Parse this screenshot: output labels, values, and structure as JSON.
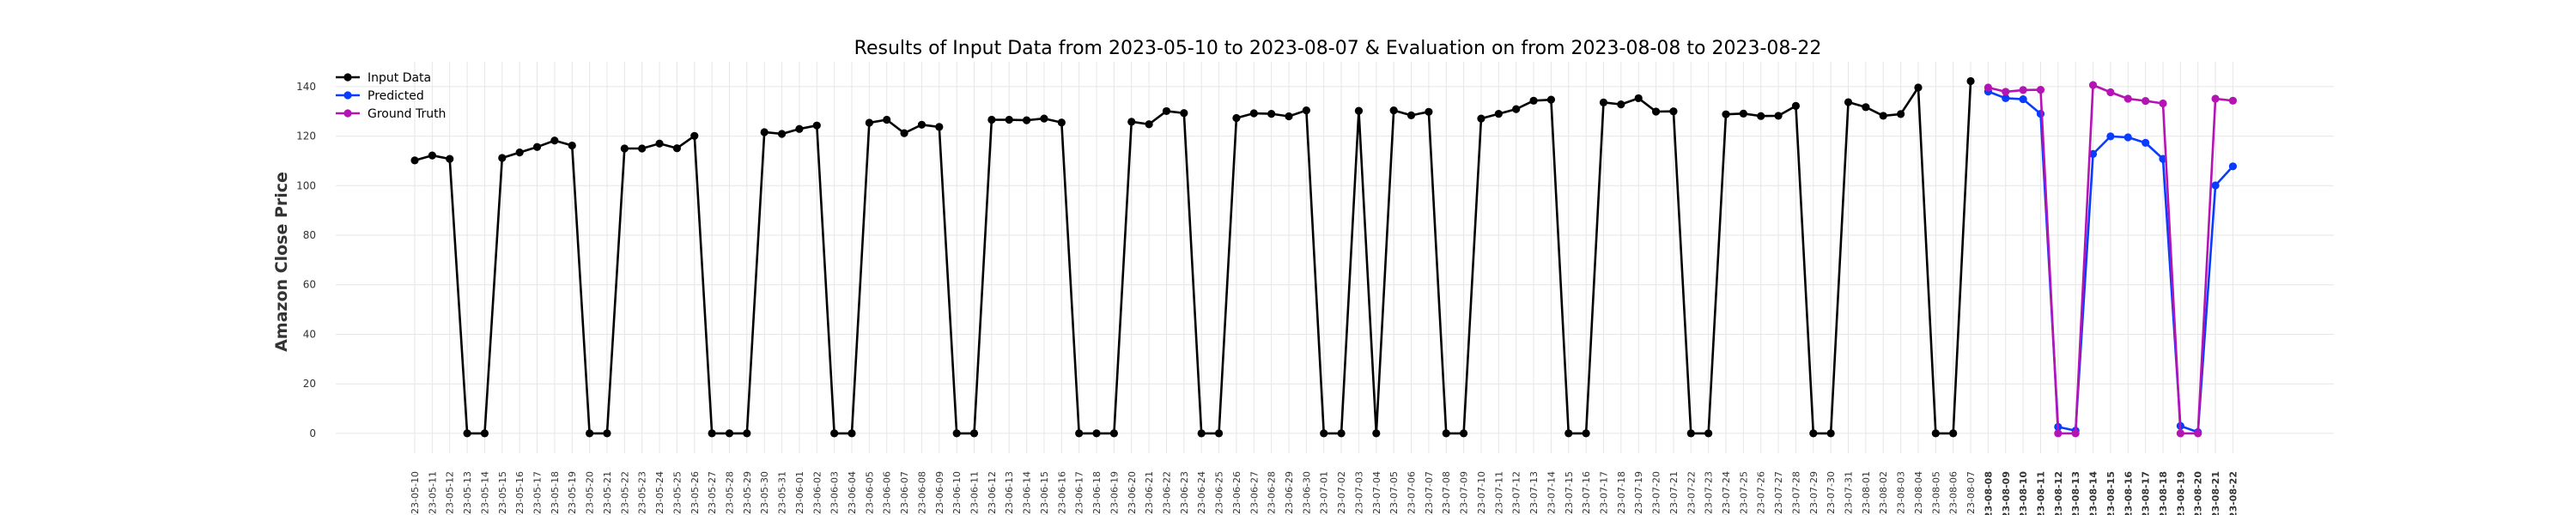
{
  "chart_data": {
    "type": "line",
    "title": "Results of Input Data from 2023-05-10 to 2023-08-07 & Evaluation on from 2023-08-08 to 2023-08-22",
    "ylabel": "Amazon Close Price",
    "xlabel": "",
    "ylim": [
      -8,
      150
    ],
    "yticks": [
      0,
      20,
      40,
      60,
      80,
      100,
      120,
      140
    ],
    "grid": true,
    "legend_position": "top-left",
    "series": [
      {
        "name": "Input Data",
        "color": "#000000",
        "x": [
          "2023-05-10",
          "2023-05-11",
          "2023-05-12",
          "2023-05-13",
          "2023-05-14",
          "2023-05-15",
          "2023-05-16",
          "2023-05-17",
          "2023-05-18",
          "2023-05-19",
          "2023-05-20",
          "2023-05-21",
          "2023-05-22",
          "2023-05-23",
          "2023-05-24",
          "2023-05-25",
          "2023-05-26",
          "2023-05-27",
          "2023-05-28",
          "2023-05-29",
          "2023-05-30",
          "2023-05-31",
          "2023-06-01",
          "2023-06-02",
          "2023-06-03",
          "2023-06-04",
          "2023-06-05",
          "2023-06-06",
          "2023-06-07",
          "2023-06-08",
          "2023-06-09",
          "2023-06-10",
          "2023-06-11",
          "2023-06-12",
          "2023-06-13",
          "2023-06-14",
          "2023-06-15",
          "2023-06-16",
          "2023-06-17",
          "2023-06-18",
          "2023-06-19",
          "2023-06-20",
          "2023-06-21",
          "2023-06-22",
          "2023-06-23",
          "2023-06-24",
          "2023-06-25",
          "2023-06-26",
          "2023-06-27",
          "2023-06-28",
          "2023-06-29",
          "2023-06-30",
          "2023-07-01",
          "2023-07-02",
          "2023-07-03",
          "2023-07-04",
          "2023-07-05",
          "2023-07-06",
          "2023-07-07",
          "2023-07-08",
          "2023-07-09",
          "2023-07-10",
          "2023-07-11",
          "2023-07-12",
          "2023-07-13",
          "2023-07-14",
          "2023-07-15",
          "2023-07-16",
          "2023-07-17",
          "2023-07-18",
          "2023-07-19",
          "2023-07-20",
          "2023-07-21",
          "2023-07-22",
          "2023-07-23",
          "2023-07-24",
          "2023-07-25",
          "2023-07-26",
          "2023-07-27",
          "2023-07-28",
          "2023-07-29",
          "2023-07-30",
          "2023-07-31",
          "2023-08-01",
          "2023-08-02",
          "2023-08-03",
          "2023-08-04",
          "2023-08-05",
          "2023-08-06",
          "2023-08-07"
        ],
        "values": [
          110.2,
          112.2,
          110.8,
          0,
          0,
          111.2,
          113.4,
          115.6,
          118.2,
          116.2,
          0,
          0,
          115.0,
          115.0,
          117.0,
          115.1,
          120.1,
          0,
          0,
          0,
          121.6,
          120.9,
          122.9,
          124.3,
          0,
          0,
          125.4,
          126.6,
          121.2,
          124.6,
          123.7,
          0,
          0,
          126.6,
          126.6,
          126.4,
          127.1,
          125.5,
          0,
          0,
          0,
          125.8,
          124.8,
          130.1,
          129.3,
          0,
          0,
          127.3,
          129.2,
          129.0,
          128.0,
          130.4,
          0,
          0,
          130.2,
          0,
          130.4,
          128.4,
          129.8,
          0,
          0,
          127.1,
          129.0,
          130.9,
          134.3,
          134.7,
          0,
          0,
          133.6,
          132.8,
          135.3,
          129.9,
          130.0,
          0,
          0,
          128.8,
          129.1,
          128.1,
          128.2,
          132.2,
          0,
          0,
          133.7,
          131.7,
          128.2,
          128.9,
          139.6,
          0,
          0,
          142.2
        ]
      },
      {
        "name": "Predicted",
        "color": "#0a3cff",
        "x": [
          "2023-08-08",
          "2023-08-09",
          "2023-08-10",
          "2023-08-11",
          "2023-08-12",
          "2023-08-13",
          "2023-08-14",
          "2023-08-15",
          "2023-08-16",
          "2023-08-17",
          "2023-08-18",
          "2023-08-19",
          "2023-08-20",
          "2023-08-21",
          "2023-08-22"
        ],
        "values": [
          138.0,
          135.3,
          134.9,
          129.0,
          2.6,
          1.1,
          112.8,
          119.9,
          119.5,
          117.3,
          110.8,
          3.0,
          0.5,
          100.1,
          107.8
        ]
      },
      {
        "name": "Ground Truth",
        "color": "#b514b5",
        "x": [
          "2023-08-08",
          "2023-08-09",
          "2023-08-10",
          "2023-08-11",
          "2023-08-12",
          "2023-08-13",
          "2023-08-14",
          "2023-08-15",
          "2023-08-16",
          "2023-08-17",
          "2023-08-18",
          "2023-08-19",
          "2023-08-20",
          "2023-08-21",
          "2023-08-22"
        ],
        "values": [
          139.6,
          137.9,
          138.6,
          138.7,
          0,
          0,
          140.6,
          137.7,
          135.1,
          134.2,
          133.2,
          0,
          0,
          135.1,
          134.3
        ]
      }
    ]
  }
}
